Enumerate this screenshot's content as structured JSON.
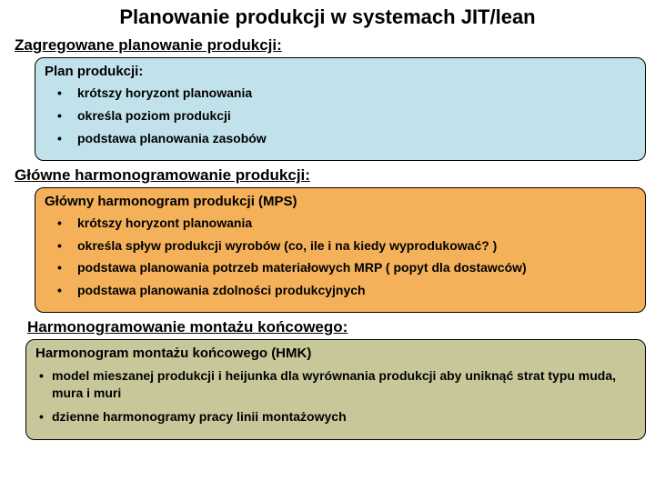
{
  "title": "Planowanie produkcji w systemach JIT/lean",
  "section1": {
    "heading": "Zagregowane planowanie produkcji:",
    "panel_title": "Plan produkcji:",
    "bullets": [
      "krótszy horyzont planowania",
      "określa poziom produkcji",
      "podstawa planowania zasobów"
    ]
  },
  "section2": {
    "heading": "Główne harmonogramowanie produkcji:",
    "panel_title": "Główny harmonogram produkcji (MPS)",
    "bullets": [
      "krótszy horyzont planowania",
      "określa spływ produkcji wyrobów (co, ile i na kiedy wyprodukować? )",
      "podstawa planowania potrzeb materiałowych MRP ( popyt dla dostawców)",
      "podstawa planowania zdolności produkcyjnych"
    ]
  },
  "section3": {
    "heading": "Harmonogramowanie montażu końcowego:",
    "panel_title": "Harmonogram montażu końcowego (HMK)",
    "bullets": [
      "model mieszanej produkcji i heijunka dla wyrównania produkcji aby uniknąć strat typu muda, mura i muri",
      "dzienne harmonogramy pracy linii montażowych"
    ]
  },
  "colors": {
    "blue": "#c2e2eb",
    "orange": "#f4b15a",
    "olive": "#c8c79a",
    "bg": "#ffffff",
    "text": "#000000"
  }
}
